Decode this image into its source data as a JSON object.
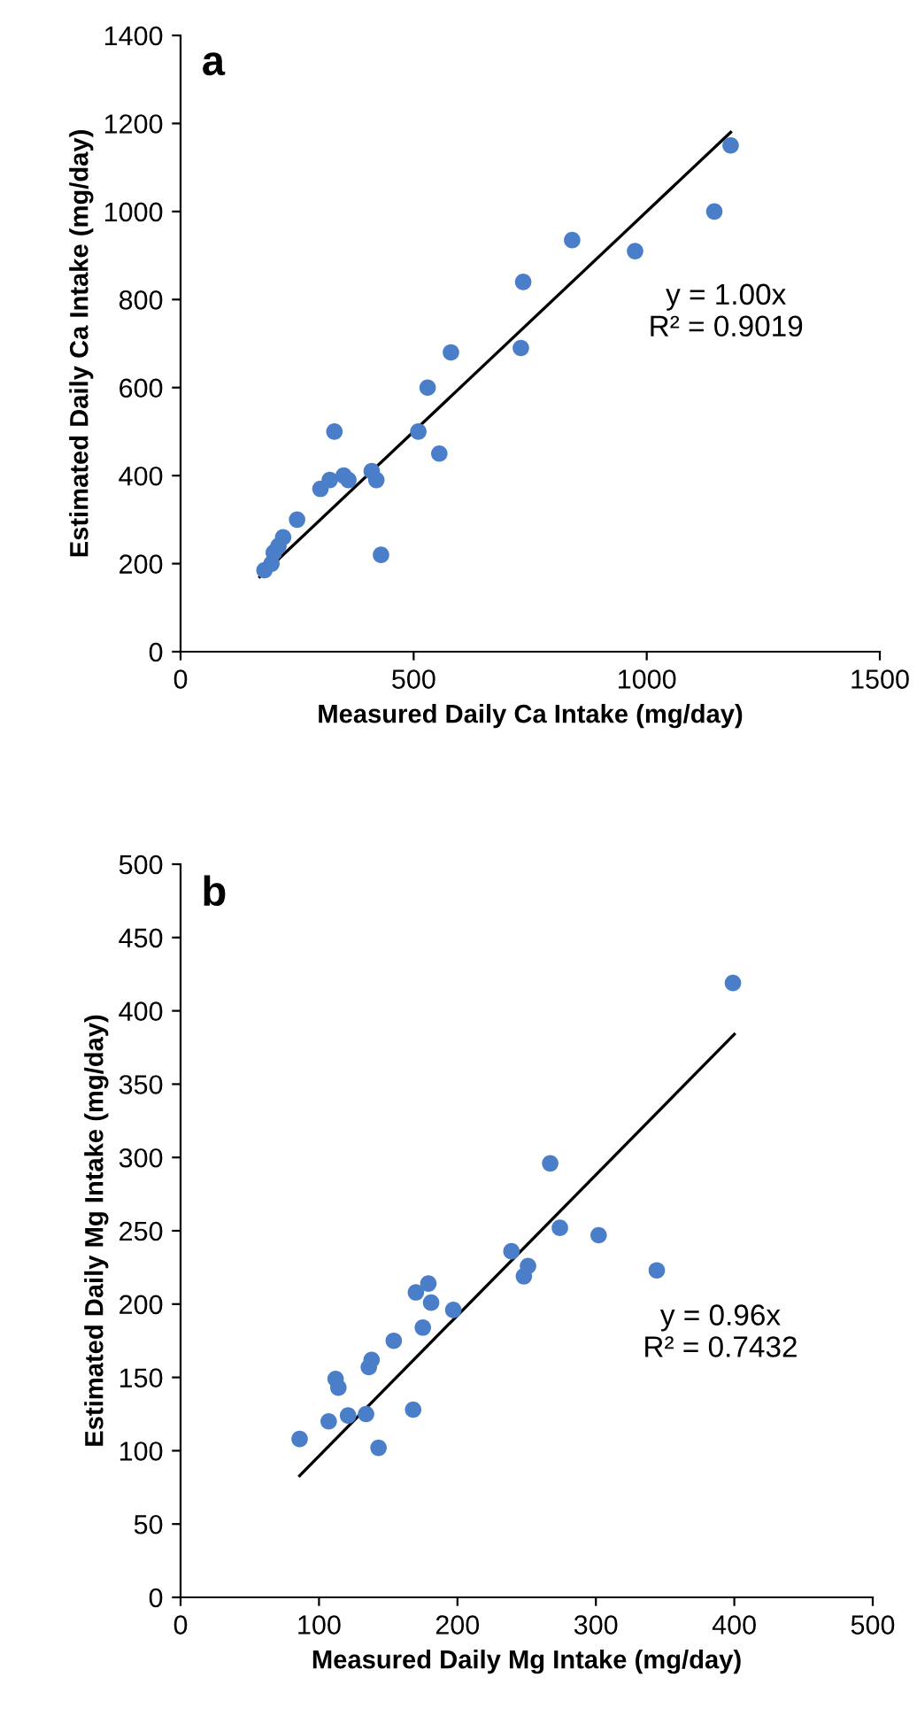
{
  "chart_data": [
    {
      "type": "scatter",
      "title": "a",
      "xlabel": "Measured Daily Ca Intake (mg/day)",
      "ylabel": "Estimated Daily Ca Intake (mg/day)",
      "series": [
        {
          "marker": "circle",
          "color": "#4a7ec8",
          "x": [
            180,
            195,
            200,
            210,
            220,
            250,
            300,
            320,
            330,
            350,
            360,
            410,
            420,
            430,
            510,
            530,
            555,
            580,
            730,
            735,
            840,
            975,
            1145,
            1180
          ],
          "values": [
            185,
            200,
            225,
            240,
            260,
            300,
            370,
            390,
            500,
            400,
            390,
            410,
            390,
            220,
            500,
            600,
            450,
            680,
            690,
            840,
            935,
            910,
            1000,
            1150
          ]
        },
        {
          "type": "line",
          "color": "#000000",
          "x": [
            170,
            1180
          ],
          "values": [
            170,
            1180
          ]
        }
      ],
      "annotations": [
        "y = 1.00x\nR² = 0.9019"
      ],
      "xlim": [
        0,
        1500
      ],
      "xticks": [
        0,
        500,
        1000,
        1500
      ],
      "ylim": [
        0,
        1400
      ],
      "yticks": [
        0,
        200,
        400,
        600,
        800,
        1000,
        1200,
        1400
      ],
      "grid": false,
      "legend": false
    },
    {
      "type": "scatter",
      "title": "b",
      "xlabel": "Measured Daily Mg Intake (mg/day)",
      "ylabel": "Estimated Daily Mg Intake (mg/day)",
      "series": [
        {
          "marker": "circle",
          "color": "#4a7ec8",
          "x": [
            86,
            107,
            112,
            114,
            121,
            134,
            143,
            136,
            138,
            154,
            168,
            170,
            179,
            181,
            175,
            197,
            239,
            248,
            251,
            267,
            274,
            302,
            344,
            399
          ],
          "values": [
            108,
            120,
            149,
            143,
            124,
            125,
            102,
            157,
            162,
            175,
            128,
            208,
            214,
            201,
            184,
            196,
            236,
            219,
            226,
            296,
            252,
            247,
            223,
            419
          ]
        },
        {
          "type": "line",
          "color": "#000000",
          "x": [
            86,
            400
          ],
          "values": [
            83,
            384
          ]
        }
      ],
      "annotations": [
        "y = 0.96x\nR² = 0.7432"
      ],
      "xlim": [
        0,
        500
      ],
      "xticks": [
        0,
        100,
        200,
        300,
        400,
        500
      ],
      "ylim": [
        0,
        500
      ],
      "yticks": [
        0,
        50,
        100,
        150,
        200,
        250,
        300,
        350,
        400,
        450,
        500
      ],
      "grid": false,
      "legend": false
    }
  ]
}
